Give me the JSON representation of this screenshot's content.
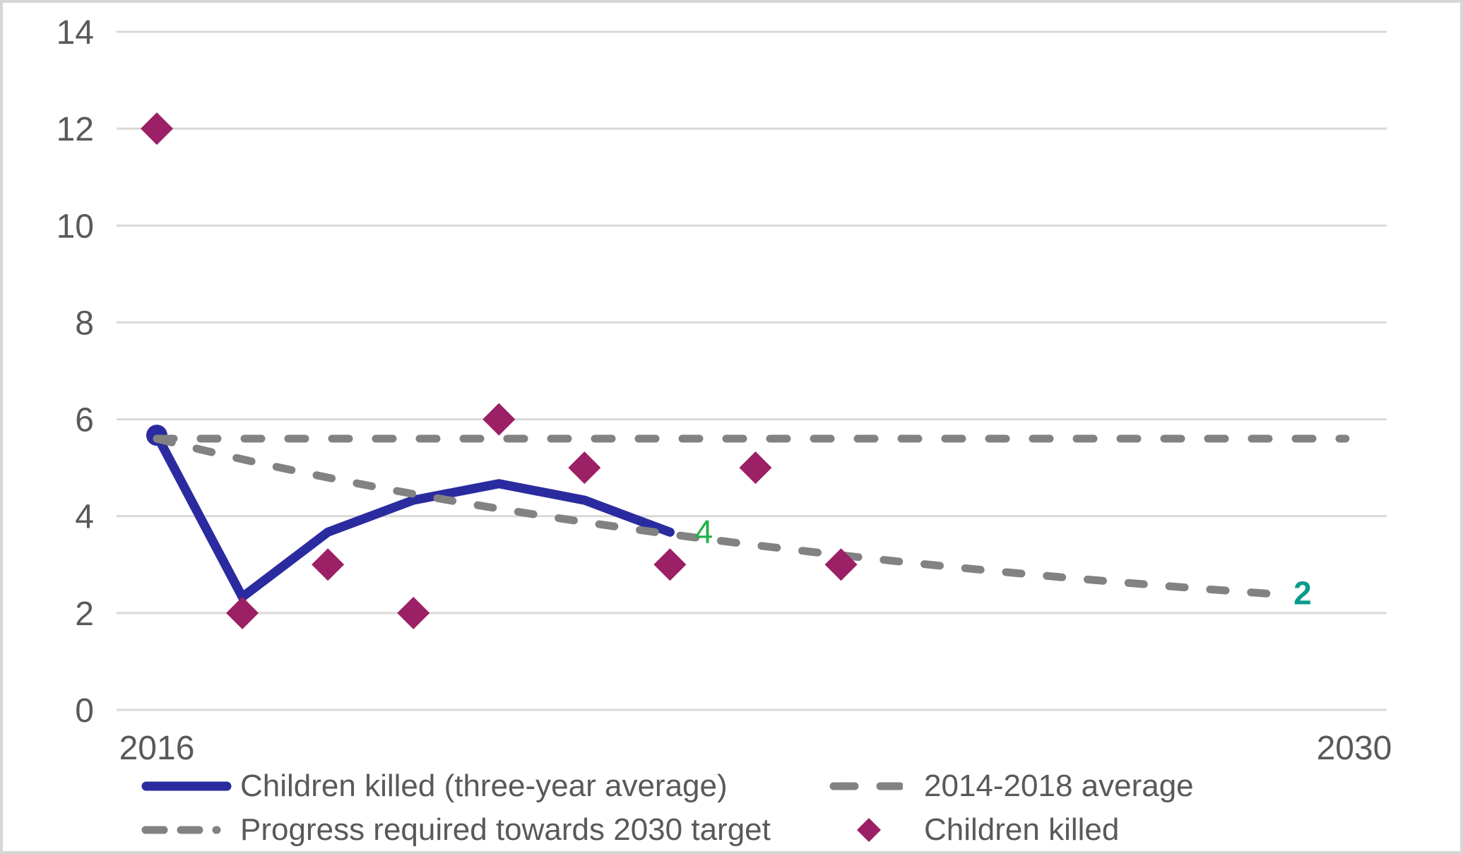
{
  "chart_data": {
    "type": "combo-line-scatter",
    "title": "",
    "xlabel": "",
    "ylabel": "",
    "xlim": [
      2016,
      2030
    ],
    "ylim": [
      0,
      14
    ],
    "yticks": [
      0,
      2,
      4,
      6,
      8,
      10,
      12,
      14
    ],
    "xticks": [
      2016,
      2030
    ],
    "grid": "horizontal-only",
    "legend_position": "bottom",
    "axis_label_color": "#595959",
    "gridline_color": "#d9d9d9",
    "series": [
      {
        "id": "children_killed",
        "name": "Children killed",
        "type": "scatter",
        "marker": "diamond",
        "color": "#9b2065",
        "x": [
          2016,
          2017,
          2018,
          2019,
          2020,
          2021,
          2022,
          2023,
          2024
        ],
        "values": [
          12,
          2,
          3,
          2,
          6,
          5,
          3,
          5,
          3
        ]
      },
      {
        "id": "three_year_average",
        "name": "Children killed (three-year average)",
        "type": "line",
        "color": "#2b2ba0",
        "start_marker": "circle",
        "x": [
          2016,
          2017,
          2018,
          2019,
          2020,
          2021,
          2022
        ],
        "values": [
          5.67,
          2.33,
          3.67,
          4.33,
          4.67,
          4.33,
          3.67
        ],
        "end_label": {
          "text": "4",
          "color": "#22b14c",
          "bold": false
        }
      },
      {
        "id": "avg_2014_2018",
        "name": "2014-2018 average",
        "type": "dashed-line",
        "color": "#828282",
        "x": [
          2016,
          2029.9
        ],
        "values": [
          5.6,
          5.6
        ]
      },
      {
        "id": "progress_required",
        "name": "Progress required towards 2030 target",
        "type": "dashed-line-curved",
        "curve": "constant-annual-rate-of-reduction",
        "color": "#828282",
        "x": [
          2016,
          2029
        ],
        "values": [
          5.6,
          2.4
        ],
        "end_label": {
          "text": "2",
          "color": "#0a9b8c",
          "bold": true
        }
      }
    ]
  }
}
